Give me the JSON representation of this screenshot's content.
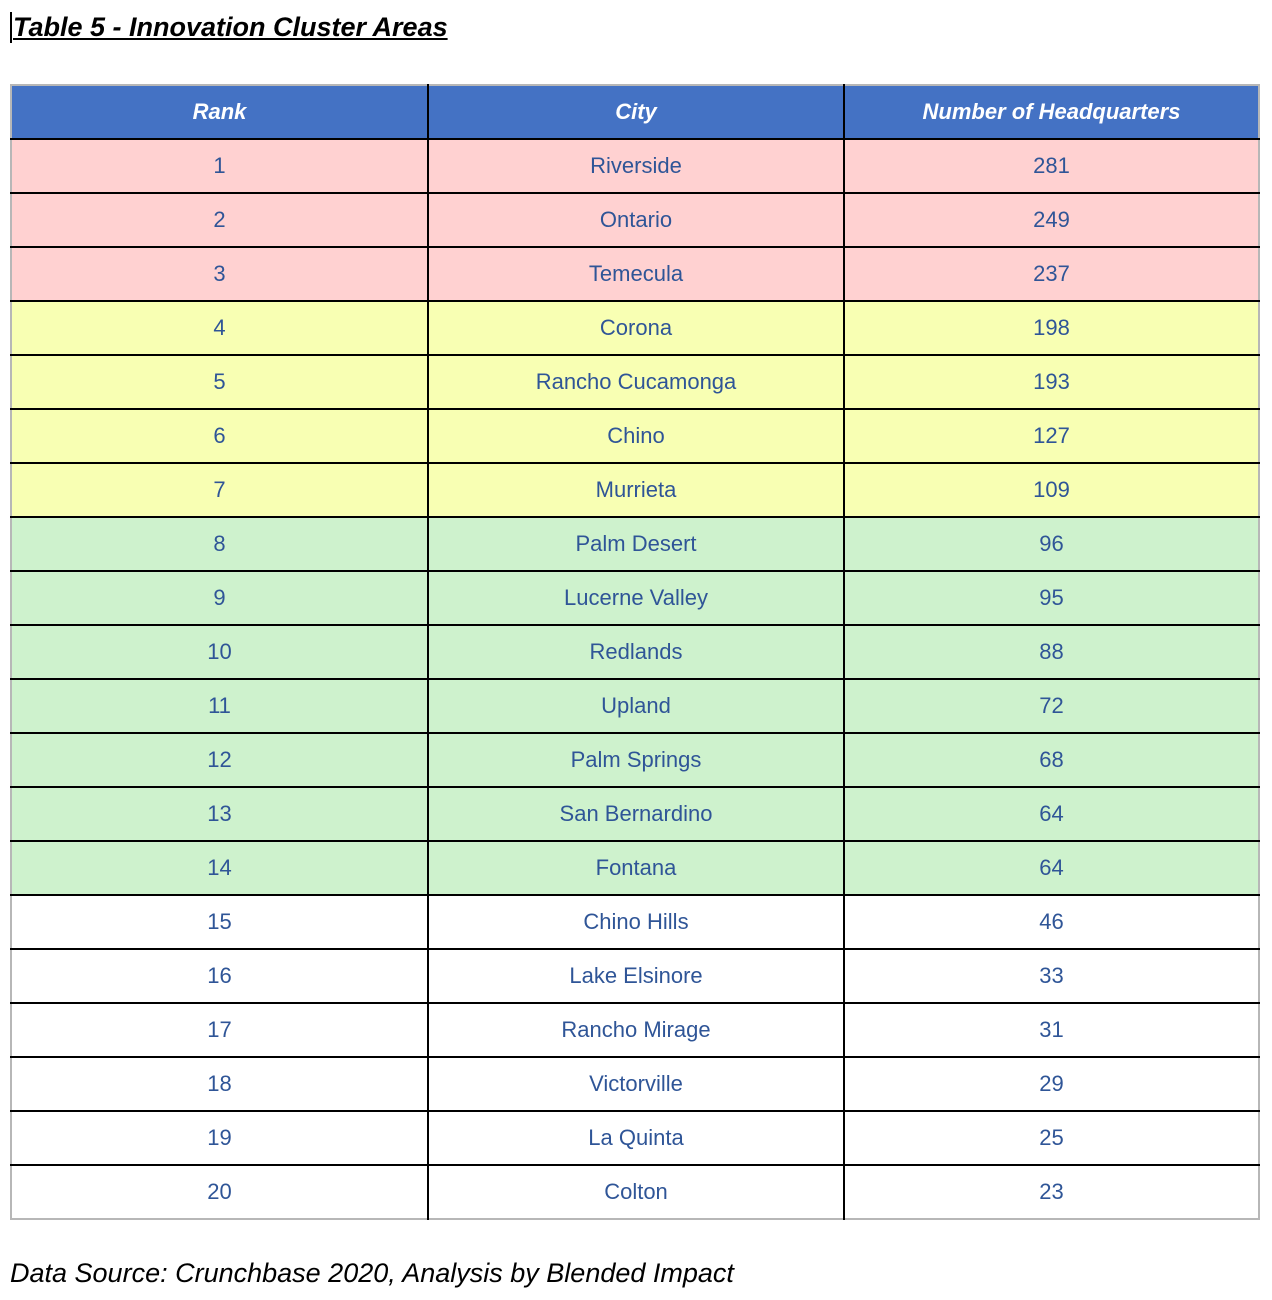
{
  "title": "Table 5 - Innovation Cluster Areas",
  "colors": {
    "header": "#4472c4",
    "tier1": "#ffd1d1",
    "tier2": "#f8ffb3",
    "tier3": "#cef2cd",
    "tier4": "#ffffff"
  },
  "table": {
    "headers": [
      "Rank",
      "City",
      "Number of Headquarters"
    ],
    "rows": [
      {
        "rank": "1",
        "city": "Riverside",
        "hq": "281",
        "tier": "tier1"
      },
      {
        "rank": "2",
        "city": "Ontario",
        "hq": "249",
        "tier": "tier1"
      },
      {
        "rank": "3",
        "city": "Temecula",
        "hq": "237",
        "tier": "tier1"
      },
      {
        "rank": "4",
        "city": "Corona",
        "hq": "198",
        "tier": "tier2"
      },
      {
        "rank": "5",
        "city": "Rancho Cucamonga",
        "hq": "193",
        "tier": "tier2"
      },
      {
        "rank": "6",
        "city": "Chino",
        "hq": "127",
        "tier": "tier2"
      },
      {
        "rank": "7",
        "city": "Murrieta",
        "hq": "109",
        "tier": "tier2"
      },
      {
        "rank": "8",
        "city": "Palm Desert",
        "hq": "96",
        "tier": "tier3"
      },
      {
        "rank": "9",
        "city": "Lucerne Valley",
        "hq": "95",
        "tier": "tier3"
      },
      {
        "rank": "10",
        "city": "Redlands",
        "hq": "88",
        "tier": "tier3"
      },
      {
        "rank": "11",
        "city": "Upland",
        "hq": "72",
        "tier": "tier3"
      },
      {
        "rank": "12",
        "city": "Palm Springs",
        "hq": "68",
        "tier": "tier3"
      },
      {
        "rank": "13",
        "city": "San Bernardino",
        "hq": "64",
        "tier": "tier3"
      },
      {
        "rank": "14",
        "city": "Fontana",
        "hq": "64",
        "tier": "tier3"
      },
      {
        "rank": "15",
        "city": "Chino Hills",
        "hq": "46",
        "tier": "tier4"
      },
      {
        "rank": "16",
        "city": "Lake Elsinore",
        "hq": "33",
        "tier": "tier4"
      },
      {
        "rank": "17",
        "city": "Rancho Mirage",
        "hq": "31",
        "tier": "tier4"
      },
      {
        "rank": "18",
        "city": "Victorville",
        "hq": "29",
        "tier": "tier4"
      },
      {
        "rank": "19",
        "city": "La Quinta",
        "hq": "25",
        "tier": "tier4"
      },
      {
        "rank": "20",
        "city": "Colton",
        "hq": "23",
        "tier": "tier4"
      }
    ]
  },
  "source": "Data Source: Crunchbase 2020, Analysis by Blended Impact"
}
